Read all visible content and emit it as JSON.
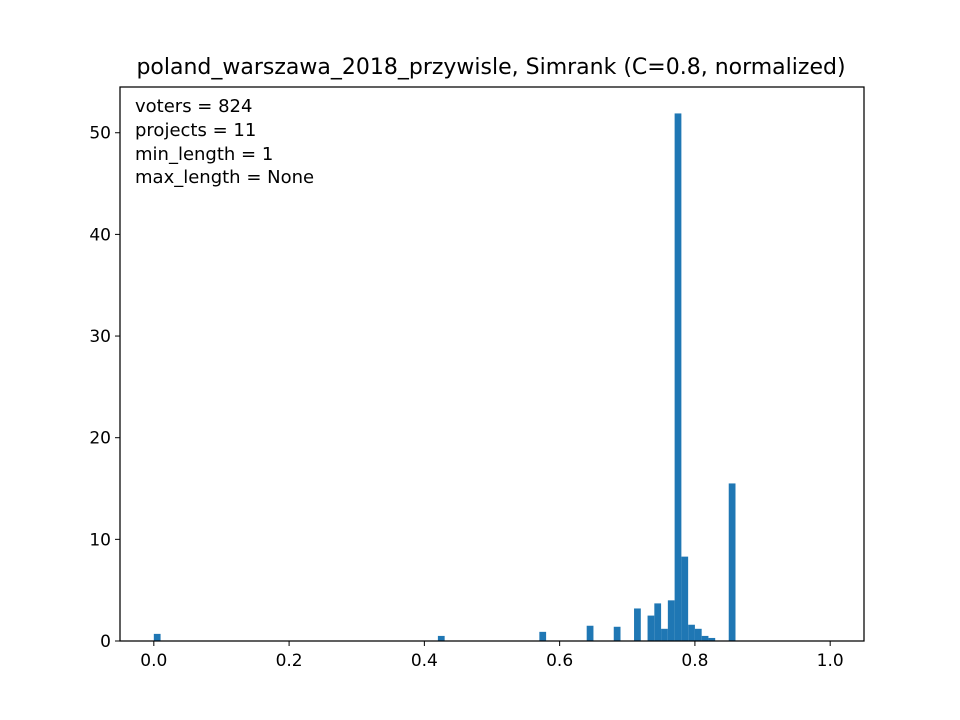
{
  "chart_data": {
    "type": "bar",
    "title": "poland_warszawa_2018_przywisle, Simrank (C=0.8, normalized)",
    "xlabel": "",
    "ylabel": "",
    "xlim": [
      -0.05,
      1.05
    ],
    "ylim": [
      0,
      54.5
    ],
    "bin_width": 0.01,
    "x_ticks": [
      0.0,
      0.2,
      0.4,
      0.6,
      0.8,
      1.0
    ],
    "x_tick_labels": [
      "0.0",
      "0.2",
      "0.4",
      "0.6",
      "0.8",
      "1.0"
    ],
    "y_ticks": [
      0,
      10,
      20,
      30,
      40,
      50
    ],
    "y_tick_labels": [
      "0",
      "10",
      "20",
      "30",
      "40",
      "50"
    ],
    "annotations": [
      "voters = 824",
      "projects = 11",
      "min_length = 1",
      "max_length = None"
    ],
    "grid": false,
    "bar_color": "#1f77b4",
    "series": [
      {
        "bins": [
          {
            "x": 0.0,
            "value": 0.7
          },
          {
            "x": 0.42,
            "value": 0.5
          },
          {
            "x": 0.57,
            "value": 0.9
          },
          {
            "x": 0.64,
            "value": 1.5
          },
          {
            "x": 0.68,
            "value": 1.4
          },
          {
            "x": 0.71,
            "value": 3.2
          },
          {
            "x": 0.73,
            "value": 2.5
          },
          {
            "x": 0.74,
            "value": 3.7
          },
          {
            "x": 0.75,
            "value": 1.2
          },
          {
            "x": 0.76,
            "value": 4.0
          },
          {
            "x": 0.77,
            "value": 51.9
          },
          {
            "x": 0.78,
            "value": 8.3
          },
          {
            "x": 0.79,
            "value": 1.6
          },
          {
            "x": 0.8,
            "value": 1.2
          },
          {
            "x": 0.81,
            "value": 0.5
          },
          {
            "x": 0.82,
            "value": 0.3
          },
          {
            "x": 0.85,
            "value": 15.5
          }
        ]
      }
    ]
  }
}
